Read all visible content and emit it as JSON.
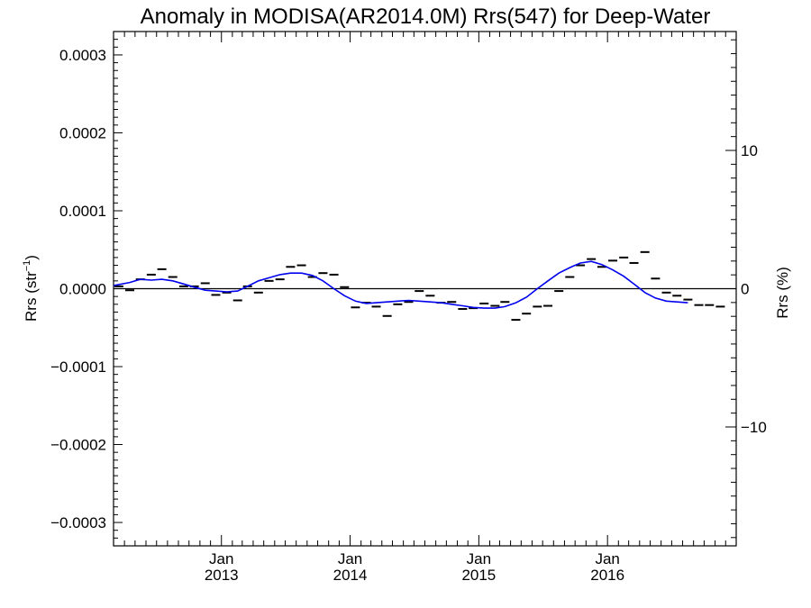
{
  "chart_data": {
    "type": "line",
    "title": "Anomaly in MODISA(AR2014.0M) Rrs(547) for Deep-Water",
    "ylabel": "Rrs (str⁻¹)",
    "y2label": "Rrs (%)",
    "xlabel": "",
    "xlim": [
      "2012-03-01",
      "2016-12-31"
    ],
    "ylim": [
      -0.00033,
      0.00033
    ],
    "y2lim": [
      -18.6,
      18.6
    ],
    "y_ticks": [
      {
        "value": 0.0003,
        "label": "0.0003"
      },
      {
        "value": 0.0002,
        "label": "0.0002"
      },
      {
        "value": 0.0001,
        "label": "0.0001"
      },
      {
        "value": 0.0,
        "label": "0.0000"
      },
      {
        "value": -0.0001,
        "label": "−0.0001"
      },
      {
        "value": -0.0002,
        "label": "−0.0002"
      },
      {
        "value": -0.0003,
        "label": "−0.0003"
      }
    ],
    "y2_ticks": [
      {
        "value": 10,
        "label": "10"
      },
      {
        "value": 0,
        "label": "0"
      },
      {
        "value": -10,
        "label": "−10"
      }
    ],
    "x_ticks": [
      {
        "date": "2013-01-01",
        "month": "Jan",
        "year": "2013"
      },
      {
        "date": "2014-01-01",
        "month": "Jan",
        "year": "2014"
      },
      {
        "date": "2015-01-01",
        "month": "Jan",
        "year": "2015"
      },
      {
        "date": "2016-01-01",
        "month": "Jan",
        "year": "2016"
      }
    ],
    "zero_line": true,
    "grid": false,
    "series": [
      {
        "style": "dash-markers",
        "color": "#000000",
        "points": [
          {
            "x": "2012-03-16",
            "y": 3e-06
          },
          {
            "x": "2012-04-16",
            "y": -2e-06
          },
          {
            "x": "2012-05-16",
            "y": 1.2e-05
          },
          {
            "x": "2012-06-16",
            "y": 1.8e-05
          },
          {
            "x": "2012-07-16",
            "y": 2.5e-05
          },
          {
            "x": "2012-08-16",
            "y": 1.5e-05
          },
          {
            "x": "2012-09-16",
            "y": 3e-06
          },
          {
            "x": "2012-10-16",
            "y": 3e-06
          },
          {
            "x": "2012-11-16",
            "y": 7e-06
          },
          {
            "x": "2012-12-16",
            "y": -8e-06
          },
          {
            "x": "2013-01-16",
            "y": -5e-06
          },
          {
            "x": "2013-02-16",
            "y": -1.5e-05
          },
          {
            "x": "2013-03-16",
            "y": 3e-06
          },
          {
            "x": "2013-04-16",
            "y": -5e-06
          },
          {
            "x": "2013-05-16",
            "y": 1e-05
          },
          {
            "x": "2013-06-16",
            "y": 1.2e-05
          },
          {
            "x": "2013-07-16",
            "y": 2.8e-05
          },
          {
            "x": "2013-08-16",
            "y": 3e-05
          },
          {
            "x": "2013-09-16",
            "y": 1.5e-05
          },
          {
            "x": "2013-10-16",
            "y": 2e-05
          },
          {
            "x": "2013-11-16",
            "y": 1.8e-05
          },
          {
            "x": "2013-12-16",
            "y": 2e-06
          },
          {
            "x": "2014-01-16",
            "y": -2.4e-05
          },
          {
            "x": "2014-02-16",
            "y": -1.8e-05
          },
          {
            "x": "2014-03-16",
            "y": -2.3e-05
          },
          {
            "x": "2014-04-16",
            "y": -3.5e-05
          },
          {
            "x": "2014-05-16",
            "y": -2e-05
          },
          {
            "x": "2014-06-16",
            "y": -1.7e-05
          },
          {
            "x": "2014-07-16",
            "y": -3e-06
          },
          {
            "x": "2014-08-16",
            "y": -9e-06
          },
          {
            "x": "2014-09-16",
            "y": -1.8e-05
          },
          {
            "x": "2014-10-16",
            "y": -1.7e-05
          },
          {
            "x": "2014-11-16",
            "y": -2.6e-05
          },
          {
            "x": "2014-12-16",
            "y": -2.5e-05
          },
          {
            "x": "2015-01-16",
            "y": -1.9e-05
          },
          {
            "x": "2015-02-16",
            "y": -2.2e-05
          },
          {
            "x": "2015-03-16",
            "y": -1.7e-05
          },
          {
            "x": "2015-04-16",
            "y": -4e-05
          },
          {
            "x": "2015-05-16",
            "y": -3.2e-05
          },
          {
            "x": "2015-06-16",
            "y": -2.3e-05
          },
          {
            "x": "2015-07-16",
            "y": -2.2e-05
          },
          {
            "x": "2015-08-16",
            "y": -3e-06
          },
          {
            "x": "2015-09-16",
            "y": 1.5e-05
          },
          {
            "x": "2015-10-16",
            "y": 3e-05
          },
          {
            "x": "2015-11-16",
            "y": 3.8e-05
          },
          {
            "x": "2015-12-16",
            "y": 2.8e-05
          },
          {
            "x": "2016-01-16",
            "y": 3.6e-05
          },
          {
            "x": "2016-02-16",
            "y": 4e-05
          },
          {
            "x": "2016-03-16",
            "y": 3.3e-05
          },
          {
            "x": "2016-04-16",
            "y": 4.7e-05
          },
          {
            "x": "2016-05-16",
            "y": 1.3e-05
          },
          {
            "x": "2016-06-16",
            "y": -5e-06
          },
          {
            "x": "2016-07-16",
            "y": -9e-06
          },
          {
            "x": "2016-08-16",
            "y": -1.4e-05
          },
          {
            "x": "2016-09-16",
            "y": -2.1e-05
          },
          {
            "x": "2016-10-16",
            "y": -2.1e-05
          },
          {
            "x": "2016-11-16",
            "y": -2.3e-05
          }
        ]
      },
      {
        "style": "line",
        "color": "#0000ee",
        "points": [
          {
            "x": "2012-03-01",
            "y": 4e-06
          },
          {
            "x": "2012-04-16",
            "y": 8e-06
          },
          {
            "x": "2012-05-16",
            "y": 1.2e-05
          },
          {
            "x": "2012-06-16",
            "y": 1.1e-05
          },
          {
            "x": "2012-07-16",
            "y": 1.2e-05
          },
          {
            "x": "2012-08-16",
            "y": 1e-05
          },
          {
            "x": "2012-09-16",
            "y": 6e-06
          },
          {
            "x": "2012-10-16",
            "y": 2e-06
          },
          {
            "x": "2012-11-16",
            "y": -2e-06
          },
          {
            "x": "2012-12-16",
            "y": -3e-06
          },
          {
            "x": "2013-01-16",
            "y": -4e-06
          },
          {
            "x": "2013-02-16",
            "y": -3e-06
          },
          {
            "x": "2013-03-16",
            "y": 3e-06
          },
          {
            "x": "2013-04-16",
            "y": 1e-05
          },
          {
            "x": "2013-05-16",
            "y": 1.4e-05
          },
          {
            "x": "2013-06-16",
            "y": 1.8e-05
          },
          {
            "x": "2013-07-16",
            "y": 2e-05
          },
          {
            "x": "2013-08-16",
            "y": 2e-05
          },
          {
            "x": "2013-09-16",
            "y": 1.7e-05
          },
          {
            "x": "2013-10-16",
            "y": 1e-05
          },
          {
            "x": "2013-11-16",
            "y": 0.0
          },
          {
            "x": "2013-12-16",
            "y": -9e-06
          },
          {
            "x": "2014-01-16",
            "y": -1.6e-05
          },
          {
            "x": "2014-02-16",
            "y": -1.9e-05
          },
          {
            "x": "2014-03-16",
            "y": -1.8e-05
          },
          {
            "x": "2014-04-16",
            "y": -1.7e-05
          },
          {
            "x": "2014-05-16",
            "y": -1.6e-05
          },
          {
            "x": "2014-06-16",
            "y": -1.5e-05
          },
          {
            "x": "2014-07-16",
            "y": -1.6e-05
          },
          {
            "x": "2014-08-16",
            "y": -1.7e-05
          },
          {
            "x": "2014-09-16",
            "y": -1.8e-05
          },
          {
            "x": "2014-10-16",
            "y": -2e-05
          },
          {
            "x": "2014-11-16",
            "y": -2.2e-05
          },
          {
            "x": "2014-12-16",
            "y": -2.4e-05
          },
          {
            "x": "2015-01-16",
            "y": -2.5e-05
          },
          {
            "x": "2015-02-16",
            "y": -2.5e-05
          },
          {
            "x": "2015-03-16",
            "y": -2.3e-05
          },
          {
            "x": "2015-04-16",
            "y": -1.8e-05
          },
          {
            "x": "2015-05-16",
            "y": -1.1e-05
          },
          {
            "x": "2015-06-16",
            "y": 0.0
          },
          {
            "x": "2015-07-16",
            "y": 1e-05
          },
          {
            "x": "2015-08-16",
            "y": 2e-05
          },
          {
            "x": "2015-09-16",
            "y": 2.7e-05
          },
          {
            "x": "2015-10-16",
            "y": 3.3e-05
          },
          {
            "x": "2015-11-16",
            "y": 3.5e-05
          },
          {
            "x": "2015-12-16",
            "y": 3.1e-05
          },
          {
            "x": "2016-01-16",
            "y": 2.4e-05
          },
          {
            "x": "2016-02-16",
            "y": 1.6e-05
          },
          {
            "x": "2016-03-16",
            "y": 6e-06
          },
          {
            "x": "2016-04-16",
            "y": -5e-06
          },
          {
            "x": "2016-05-16",
            "y": -1.2e-05
          },
          {
            "x": "2016-06-16",
            "y": -1.6e-05
          },
          {
            "x": "2016-07-16",
            "y": -1.7e-05
          },
          {
            "x": "2016-08-16",
            "y": -1.8e-05
          }
        ]
      }
    ]
  }
}
